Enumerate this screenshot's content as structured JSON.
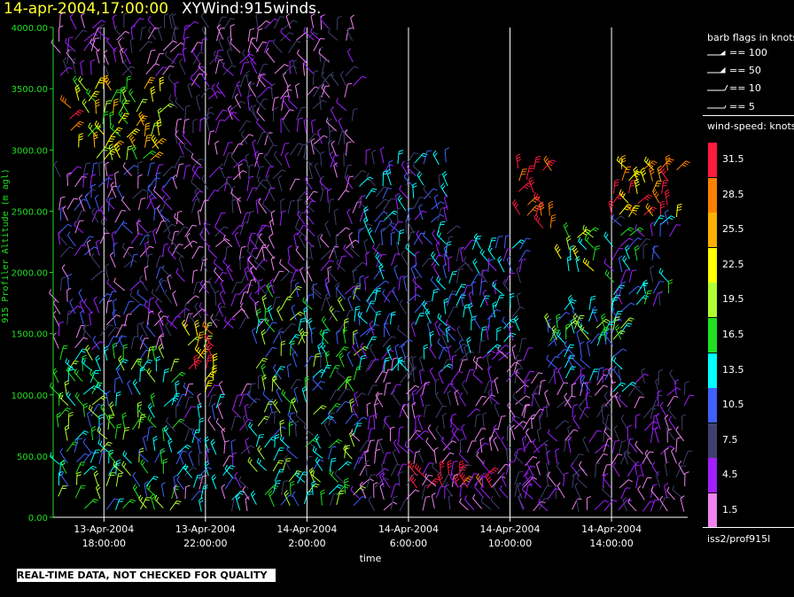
{
  "title": {
    "date": "14-apr-2004,17:00:00",
    "name": "XYWind:915winds."
  },
  "notice": "REAL-TIME DATA, NOT CHECKED FOR QUALITY",
  "legend": {
    "barb_header": "barb flags in knots",
    "barbs": [
      "== 100",
      "== 50",
      "== 10",
      "== 5"
    ],
    "speed_header": "wind-speed: knots",
    "speed_bins": [
      {
        "label": "31.5",
        "color": "#ff1a40"
      },
      {
        "label": "28.5",
        "color": "#ff8000"
      },
      {
        "label": "25.5",
        "color": "#ffb000"
      },
      {
        "label": "22.5",
        "color": "#ffff00"
      },
      {
        "label": "19.5",
        "color": "#b0ff30"
      },
      {
        "label": "16.5",
        "color": "#20e020"
      },
      {
        "label": "13.5",
        "color": "#00ffff"
      },
      {
        "label": "10.5",
        "color": "#4060ff"
      },
      {
        "label": "7.5",
        "color": "#404070"
      },
      {
        "label": "4.5",
        "color": "#a020ff"
      },
      {
        "label": "1.5",
        "color": "#ee82ee"
      }
    ],
    "source": "iss2/prof915l"
  },
  "chart_data": {
    "type": "wind-barb",
    "ylabel": "915 Profiler Altitude (m agl)",
    "xlabel": "time",
    "ylim": [
      0,
      4000
    ],
    "yticks": [
      "0.00",
      "500.00",
      "1000.00",
      "1500.00",
      "2000.00",
      "2500.00",
      "3000.00",
      "3500.00",
      "4000.00"
    ],
    "xlim_hours_since_13apr_1600": [
      0,
      25
    ],
    "xticks": [
      {
        "date": "13-Apr-2004",
        "time": "18:00:00",
        "hour": 2
      },
      {
        "date": "13-Apr-2004",
        "time": "22:00:00",
        "hour": 6
      },
      {
        "date": "14-Apr-2004",
        "time": "2:00:00",
        "hour": 10
      },
      {
        "date": "14-Apr-2004",
        "time": "6:00:00",
        "hour": 14
      },
      {
        "date": "14-Apr-2004",
        "time": "10:00:00",
        "hour": 18
      },
      {
        "date": "14-Apr-2004",
        "time": "14:00:00",
        "hour": 22
      }
    ],
    "grid": "vertical at x ticks",
    "legend_position": "right",
    "regions": [
      {
        "t0": 0.2,
        "t1": 4.8,
        "h0": 50,
        "h1": 1300,
        "bin": [
          4,
          7
        ]
      },
      {
        "t0": 0.2,
        "t1": 4.8,
        "h0": 1300,
        "h1": 2800,
        "bin": [
          7,
          10
        ]
      },
      {
        "t0": 1.0,
        "t1": 4.2,
        "h0": 2850,
        "h1": 3500,
        "bin": [
          2,
          5
        ]
      },
      {
        "t0": 0.3,
        "t1": 0.8,
        "h0": 3100,
        "h1": 3350,
        "bin": [
          0,
          1
        ]
      },
      {
        "t0": 0.2,
        "t1": 4.8,
        "h0": 3550,
        "h1": 4000,
        "bin": [
          8,
          10
        ]
      },
      {
        "t0": 4.8,
        "t1": 7.8,
        "h0": 50,
        "h1": 1000,
        "bin": [
          6,
          10
        ]
      },
      {
        "t0": 5.3,
        "t1": 6.5,
        "h0": 1000,
        "h1": 1500,
        "bin": [
          0,
          4
        ]
      },
      {
        "t0": 4.8,
        "t1": 8.0,
        "h0": 1500,
        "h1": 4000,
        "bin": [
          8,
          10
        ]
      },
      {
        "t0": 8.0,
        "t1": 12.0,
        "h0": 50,
        "h1": 1800,
        "bin": [
          4,
          8
        ]
      },
      {
        "t0": 8.0,
        "t1": 12.0,
        "h0": 1800,
        "h1": 4000,
        "bin": [
          8,
          10
        ]
      },
      {
        "t0": 12.0,
        "t1": 14.8,
        "h0": 50,
        "h1": 1200,
        "bin": [
          8,
          10
        ]
      },
      {
        "t0": 12.0,
        "t1": 15.5,
        "h0": 1200,
        "h1": 2900,
        "bin": [
          6,
          9
        ]
      },
      {
        "t0": 14.0,
        "t1": 16.0,
        "h0": 200,
        "h1": 350,
        "bin": [
          0,
          0
        ]
      },
      {
        "t0": 16.0,
        "t1": 17.5,
        "h0": 250,
        "h1": 350,
        "bin": [
          0,
          1
        ]
      },
      {
        "t0": 15.0,
        "t1": 18.5,
        "h0": 50,
        "h1": 1300,
        "bin": [
          8,
          10
        ]
      },
      {
        "t0": 15.5,
        "t1": 18.5,
        "h0": 1300,
        "h1": 2200,
        "bin": [
          6,
          9
        ]
      },
      {
        "t0": 18.3,
        "t1": 19.8,
        "h0": 2300,
        "h1": 2850,
        "bin": [
          0,
          1
        ]
      },
      {
        "t0": 18.5,
        "t1": 25.0,
        "h0": 50,
        "h1": 1100,
        "bin": [
          8,
          10
        ]
      },
      {
        "t0": 19.5,
        "t1": 22.5,
        "h0": 1000,
        "h1": 1700,
        "bin": [
          6,
          7
        ]
      },
      {
        "t0": 19.5,
        "t1": 22.5,
        "h0": 1400,
        "h1": 1550,
        "bin": [
          4,
          5
        ]
      },
      {
        "t0": 20.0,
        "t1": 21.5,
        "h0": 2000,
        "h1": 2300,
        "bin": [
          3,
          6
        ]
      },
      {
        "t0": 22.0,
        "t1": 24.8,
        "h0": 2450,
        "h1": 2850,
        "bin": [
          0,
          3
        ]
      },
      {
        "t0": 22.0,
        "t1": 24.5,
        "h0": 1700,
        "h1": 2400,
        "bin": [
          5,
          9
        ]
      }
    ]
  }
}
